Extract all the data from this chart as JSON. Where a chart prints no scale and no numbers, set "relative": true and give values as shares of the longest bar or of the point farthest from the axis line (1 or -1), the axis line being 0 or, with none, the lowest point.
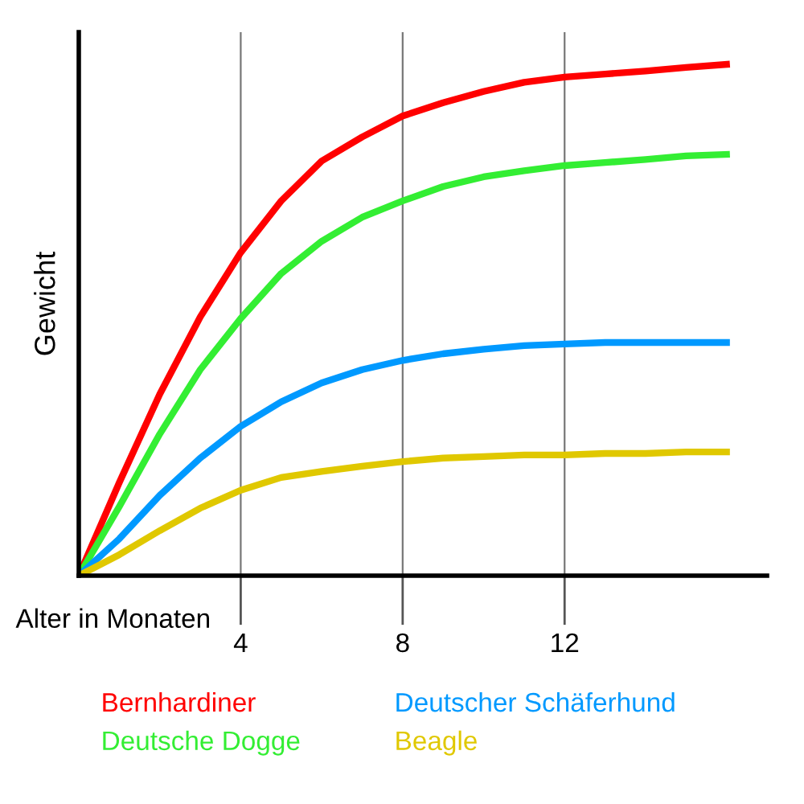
{
  "chart_data": {
    "type": "line",
    "relative": true,
    "xlabel": "Alter in Monaten",
    "ylabel": "Gewicht",
    "x": [
      0,
      1,
      2,
      3,
      4,
      5,
      6,
      7,
      8,
      9,
      10,
      11,
      12,
      13,
      14,
      15,
      16
    ],
    "xlim": [
      0,
      17
    ],
    "xticks": [
      4,
      8,
      12
    ],
    "grid": "x",
    "legend": "bottom",
    "tick_labels": "x",
    "marker": "none",
    "line_style": "solid",
    "series": [
      {
        "name": "Bernhardiner",
        "color": "#ff0000",
        "values": [
          0,
          0.182,
          0.355,
          0.506,
          0.632,
          0.733,
          0.811,
          0.858,
          0.899,
          0.925,
          0.947,
          0.965,
          0.975,
          0.981,
          0.987,
          0.994,
          1
        ]
      },
      {
        "name": "Deutsche Dogge",
        "color": "#33ee33",
        "values": [
          0,
          0.135,
          0.277,
          0.403,
          0.503,
          0.591,
          0.654,
          0.701,
          0.733,
          0.761,
          0.78,
          0.792,
          0.802,
          0.808,
          0.814,
          0.821,
          0.824
        ]
      },
      {
        "name": "Deutscher Schäferhund",
        "color": "#0099ff",
        "values": [
          0,
          0.072,
          0.157,
          0.23,
          0.292,
          0.34,
          0.377,
          0.403,
          0.421,
          0.434,
          0.443,
          0.45,
          0.453,
          0.456,
          0.456,
          0.456,
          0.456
        ]
      },
      {
        "name": "Beagle",
        "color": "#e0c800",
        "values": [
          0,
          0.041,
          0.088,
          0.132,
          0.167,
          0.192,
          0.204,
          0.214,
          0.223,
          0.23,
          0.233,
          0.236,
          0.236,
          0.239,
          0.239,
          0.242,
          0.242
        ]
      }
    ]
  }
}
